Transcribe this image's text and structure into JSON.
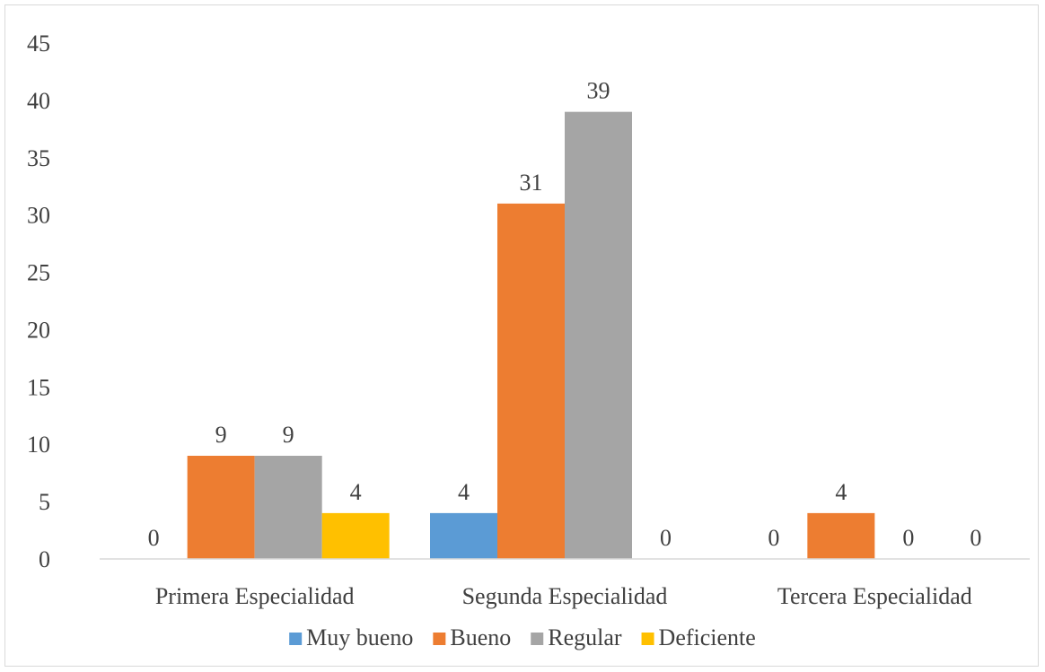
{
  "chart_data": {
    "type": "bar",
    "categories": [
      "Primera Especialidad",
      "Segunda Especialidad",
      "Tercera Especialidad"
    ],
    "series": [
      {
        "name": "Muy bueno",
        "color": "#5b9bd5",
        "values": [
          0,
          4,
          0
        ]
      },
      {
        "name": "Bueno",
        "color": "#ed7d31",
        "values": [
          9,
          31,
          4
        ]
      },
      {
        "name": "Regular",
        "color": "#a5a5a5",
        "values": [
          9,
          39,
          0
        ]
      },
      {
        "name": "Deficiente",
        "color": "#ffc000",
        "values": [
          4,
          0,
          0
        ]
      }
    ],
    "ylim": [
      0,
      45
    ],
    "yticks": [
      0,
      5,
      10,
      15,
      20,
      25,
      30,
      35,
      40,
      45
    ],
    "title": "",
    "xlabel": "",
    "ylabel": "",
    "grid": false,
    "data_labels": true,
    "legend_position": "bottom"
  }
}
